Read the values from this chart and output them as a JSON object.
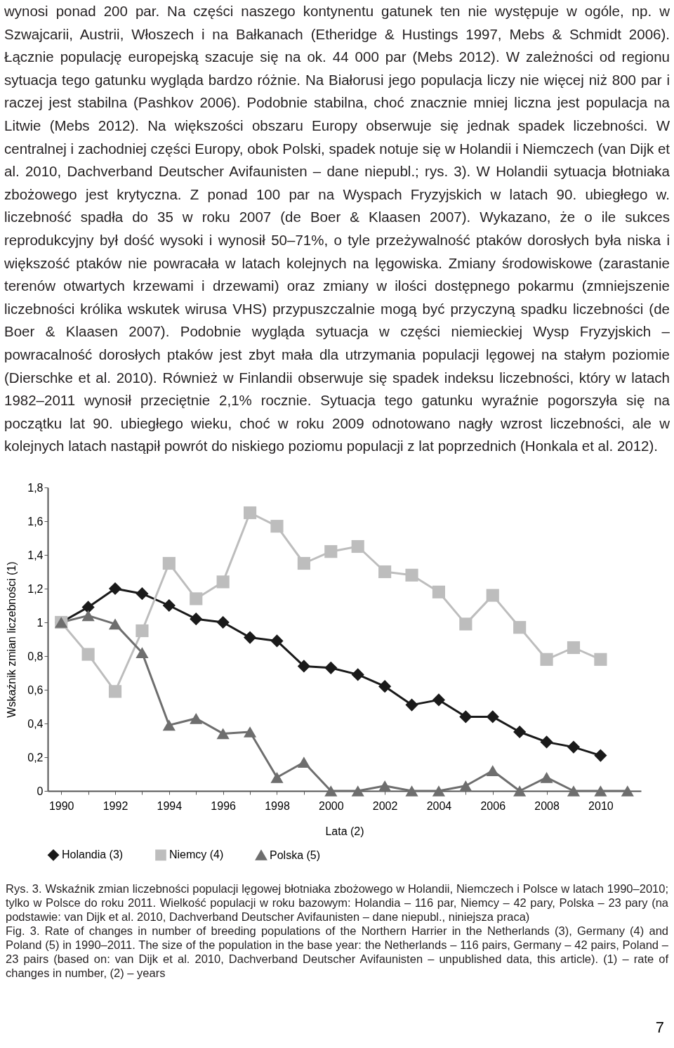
{
  "chart_data": {
    "type": "line",
    "xlabel": "Lata (2)",
    "ylabel": "Wskaźnik zmian liczebności (1)",
    "categories": [
      "1990",
      null,
      "1992",
      null,
      "1994",
      null,
      "1996",
      null,
      "1998",
      null,
      "2000",
      null,
      "2002",
      null,
      "2004",
      null,
      "2006",
      null,
      "2008",
      null,
      "2010",
      null
    ],
    "series": [
      {
        "name": "Holandia (3)",
        "color": "#1a1a1a",
        "marker": "diamond",
        "values": [
          1.0,
          1.09,
          1.2,
          1.17,
          1.1,
          1.02,
          1.0,
          0.91,
          0.89,
          0.74,
          0.73,
          0.69,
          0.62,
          0.51,
          0.54,
          0.44,
          0.44,
          0.35,
          0.29,
          0.26,
          0.21,
          null
        ]
      },
      {
        "name": "Niemcy (4)",
        "color": "#bdbdbd",
        "marker": "square",
        "values": [
          1.0,
          0.81,
          0.59,
          0.95,
          1.35,
          1.14,
          1.24,
          1.65,
          1.57,
          1.35,
          1.42,
          1.45,
          1.3,
          1.28,
          1.18,
          0.99,
          1.16,
          0.97,
          0.78,
          0.85,
          0.78,
          null
        ]
      },
      {
        "name": "Polska (5)",
        "color": "#6e6e6e",
        "marker": "triangle",
        "values": [
          1.0,
          1.04,
          0.99,
          0.82,
          0.39,
          0.43,
          0.34,
          0.35,
          0.08,
          0.17,
          0,
          0,
          0.03,
          0,
          0,
          0.03,
          0.12,
          0,
          0.08,
          0,
          0,
          0
        ]
      }
    ],
    "ylim": [
      0,
      1.8
    ],
    "yticks": [
      0,
      {
        "value": 0.2,
        "label": "0,2"
      },
      {
        "value": 0.4,
        "label": "0,4"
      },
      {
        "value": 0.6,
        "label": "0,6"
      },
      {
        "value": 0.8,
        "label": "0,8"
      },
      1,
      {
        "value": 1.2,
        "label": "1,2"
      },
      {
        "value": 1.4,
        "label": "1,4"
      },
      {
        "value": 1.6,
        "label": "1,6"
      },
      {
        "value": 1.8,
        "label": "1,8"
      }
    ],
    "grid": false,
    "legend": "bottom",
    "line_style": "solid",
    "annotations": [
      "wynosi ponad 200 par. Na części naszego kontynentu gatunek ten nie występuje w ogóle, np. w Szwajcarii, Austrii, Włoszech i na Bałkanach (Etheridge & Hustings 1997, Mebs & Schmidt 2006). Łącznie populację europejską szacuje się na ok. 44 000 par (Mebs 2012). W zależności od regionu sytuacja tego gatunku wygląda bardzo różnie. Na Białorusi jego populacja liczy nie więcej niż 800 par i raczej jest stabilna (Pashkov 2006). Podobnie stabilna, choć znacznie mniej liczna jest populacja na Litwie (Mebs 2012). Na większości obszaru Europy obserwuje się jednak spadek liczebności. W centralnej i zachodniej części Europy, obok Polski, spadek notuje się w Holandii i Niemczech (van Dijk et al. 2010, Dachverband Deutscher Avifaunisten – dane niepubl.; rys. 3). W Holandii sytuacja błotniaka zbożowego jest krytyczna. Z ponad 100 par na Wyspach Fryzyjskich w latach 90. ubiegłego w. liczebność spadła do 35 w roku 2007 (de Boer & Klaasen 2007). Wykazano, że o ile sukces reprodukcyjny był dość wysoki i wynosił 50–71%, o tyle przeżywalność ptaków dorosłych była niska i większość ptaków nie powracała w latach kolejnych na lęgowiska. Zmiany środowiskowe (zarastanie terenów otwartych krzewami i drzewami) oraz zmiany w ilości dostępnego pokarmu (zmniejszenie liczebności królika wskutek wirusa VHS) przypuszczalnie mogą być przyczyną spadku liczebności (de Boer & Klaasen 2007). Podobnie wygląda sytuacja w części niemieckiej Wysp Fryzyjskich – powracalność dorosłych ptaków jest zbyt mała dla utrzymania populacji lęgowej na stałym poziomie (Dierschke et al. 2010). Również w Finlandii obserwuje się spadek indeksu liczebności, który w latach 1982–2011 wynosił przeciętnie 2,1% rocznie. Sytuacja tego gatunku wyraźnie pogorszyła się na początku lat 90. ubiegłego wieku, choć w roku 2009 odnotowano nagły wzrost liczebności, ale w kolejnych latach nastąpił powrót do niskiego poziomu populacji z lat poprzednich (Honkala et al. 2012).",
      "Rys. 3. Wskaźnik zmian liczebności populacji lęgowej błotniaka zbożowego w Holandii, Niemczech i Polsce w latach 1990–2010; tylko w Polsce do roku 2011. Wielkość populacji w roku bazowym: Holandia – 116 par, Niemcy – 42 pary, Polska – 23 pary (na podstawie: van Dijk et al. 2010, Dachverband Deutscher Avifaunisten – dane niepubl., niniejsza praca)",
      "Fig. 3. Rate of changes in number of breeding populations of the Northern Harrier in the Netherlands (3), Germany (4) and Poland (5) in 1990–2011. The size of the population in the base year: the Netherlands – 116 pairs, Germany – 42 pairs, Poland – 23 pairs (based on: van Dijk et al. 2010, Dachverband Deutscher Avifaunisten – unpublished data, this article). (1) – rate of changes in number, (2) – years",
      "7"
    ]
  }
}
